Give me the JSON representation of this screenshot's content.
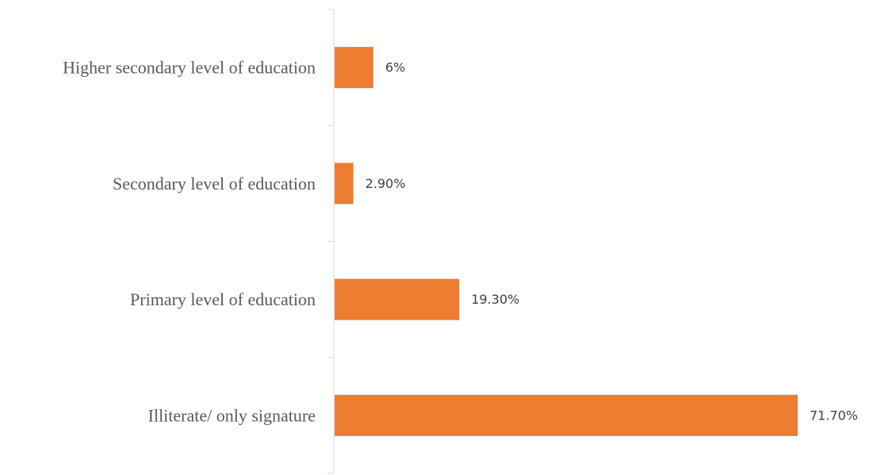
{
  "chart_data": {
    "type": "bar",
    "orientation": "horizontal",
    "categories": [
      "Higher secondary level of education",
      "Secondary level of education",
      "Primary level of education",
      "Illiterate/ only signature"
    ],
    "values": [
      6,
      2.9,
      19.3,
      71.7
    ],
    "data_labels": [
      "6%",
      "2.90%",
      "19.30%",
      "71.70%"
    ],
    "value_unit": "%",
    "xlim": [
      0,
      72
    ],
    "grid": false,
    "legend": "none",
    "title": "",
    "xlabel": "",
    "ylabel": "",
    "colors": {
      "bar": "#ED7D31",
      "axis": "#D9D9D9"
    }
  }
}
